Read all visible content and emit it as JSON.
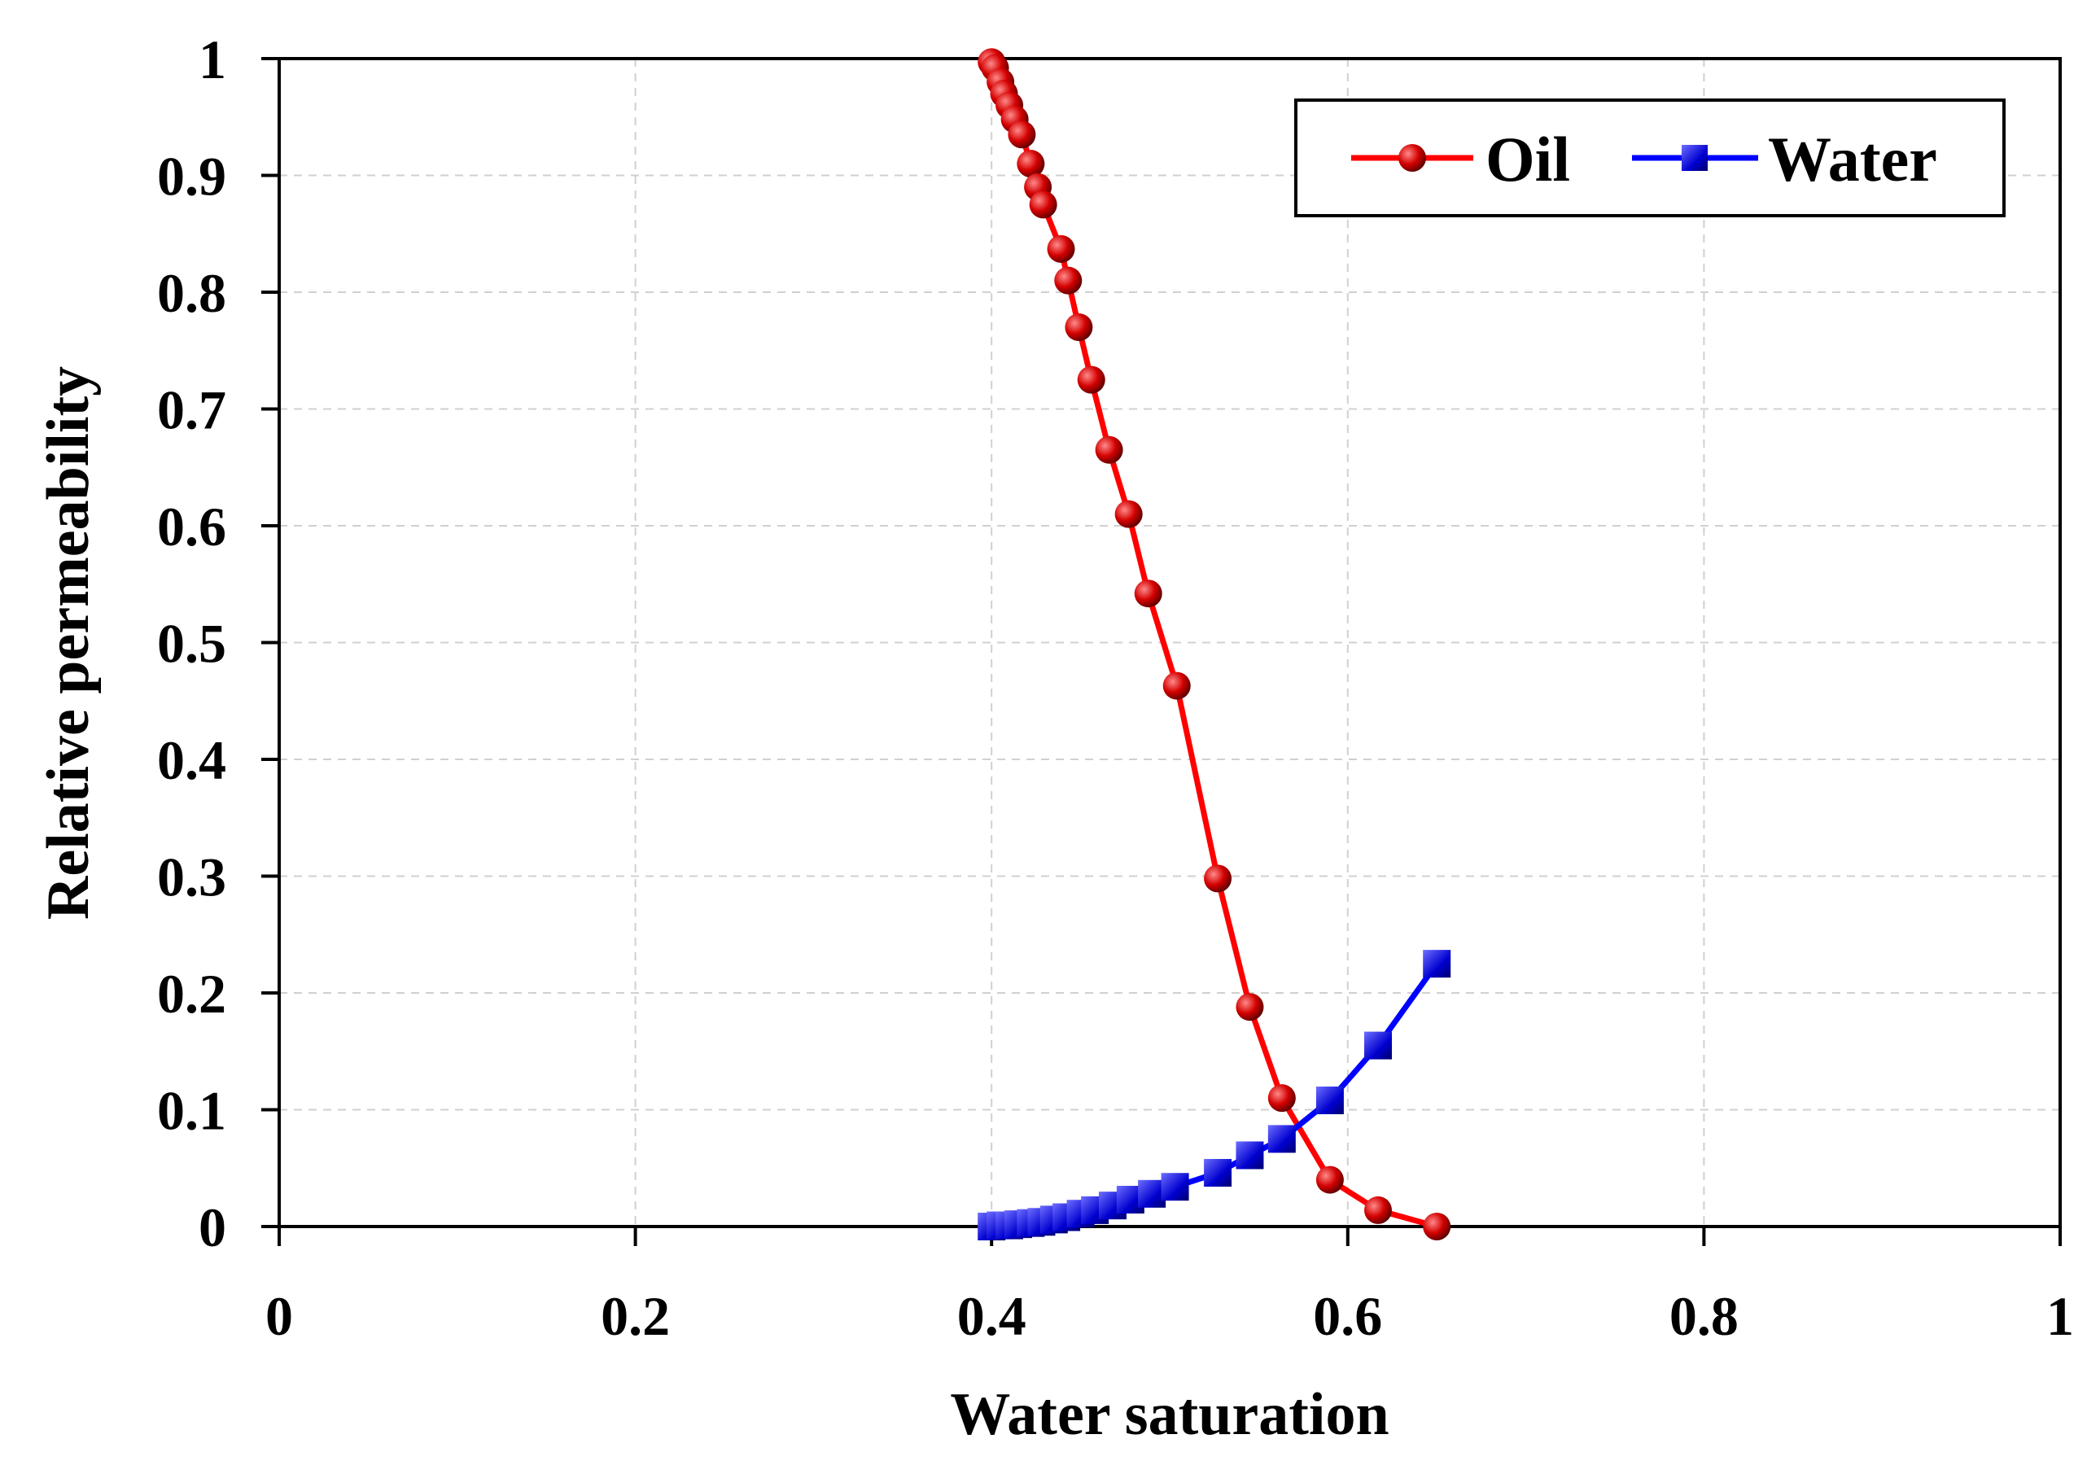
{
  "chart_data": {
    "type": "line",
    "title": "",
    "xlabel": "Water saturation",
    "ylabel": "Relative permeability",
    "xlim": [
      0,
      1
    ],
    "ylim": [
      0,
      1
    ],
    "x_ticks": [
      0,
      0.2,
      0.4,
      0.6,
      0.8,
      1
    ],
    "x_tick_labels": [
      "0",
      "0.2",
      "0.4",
      "0.6",
      "0.8",
      "1"
    ],
    "y_ticks": [
      0,
      0.1,
      0.2,
      0.3,
      0.4,
      0.5,
      0.6,
      0.7,
      0.8,
      0.9,
      1
    ],
    "y_tick_labels": [
      "0",
      "0.1",
      "0.2",
      "0.3",
      "0.4",
      "0.5",
      "0.6",
      "0.7",
      "0.8",
      "0.9",
      "1"
    ],
    "grid": true,
    "legend_position": "top-right",
    "series": [
      {
        "name": "Oil",
        "color": "#ff0000",
        "marker": "circle",
        "x": [
          0.4,
          0.402,
          0.405,
          0.407,
          0.41,
          0.413,
          0.417,
          0.422,
          0.426,
          0.429,
          0.439,
          0.443,
          0.449,
          0.456,
          0.466,
          0.477,
          0.488,
          0.504,
          0.527,
          0.545,
          0.563,
          0.59,
          0.617,
          0.65
        ],
        "y": [
          0.997,
          0.992,
          0.98,
          0.97,
          0.96,
          0.948,
          0.935,
          0.91,
          0.89,
          0.875,
          0.837,
          0.81,
          0.77,
          0.725,
          0.665,
          0.61,
          0.542,
          0.463,
          0.298,
          0.188,
          0.11,
          0.04,
          0.014,
          0.0
        ]
      },
      {
        "name": "Water",
        "color": "#0000ff",
        "marker": "square",
        "x": [
          0.4,
          0.405,
          0.41,
          0.415,
          0.422,
          0.428,
          0.435,
          0.442,
          0.45,
          0.458,
          0.468,
          0.478,
          0.49,
          0.503,
          0.527,
          0.545,
          0.563,
          0.59,
          0.617,
          0.65
        ],
        "y": [
          0.0,
          0.001,
          0.001,
          0.002,
          0.003,
          0.004,
          0.006,
          0.008,
          0.011,
          0.014,
          0.018,
          0.023,
          0.028,
          0.034,
          0.046,
          0.061,
          0.075,
          0.108,
          0.155,
          0.225
        ]
      }
    ]
  }
}
